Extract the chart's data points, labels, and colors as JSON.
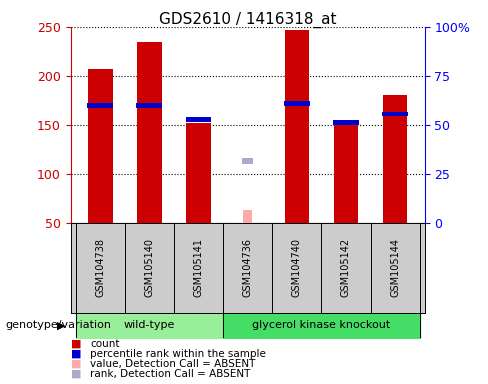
{
  "title": "GDS2610 / 1416318_at",
  "samples": [
    "GSM104738",
    "GSM105140",
    "GSM105141",
    "GSM104736",
    "GSM104740",
    "GSM105142",
    "GSM105144"
  ],
  "count_values": [
    207,
    235,
    152,
    null,
    247,
    152,
    180
  ],
  "percentile_values": [
    170,
    170,
    155,
    null,
    172,
    152,
    161
  ],
  "absent_value": [
    null,
    null,
    null,
    63,
    null,
    null,
    null
  ],
  "absent_rank": [
    null,
    null,
    null,
    113,
    null,
    null,
    null
  ],
  "ylim_left": [
    50,
    250
  ],
  "ylim_right": [
    0,
    100
  ],
  "yticks_left": [
    50,
    100,
    150,
    200,
    250
  ],
  "yticks_right": [
    0,
    25,
    50,
    75,
    100
  ],
  "ytick_labels_right": [
    "0",
    "25",
    "50",
    "75",
    "100%"
  ],
  "count_color": "#cc0000",
  "percentile_color": "#0000cc",
  "absent_value_color": "#ffaaaa",
  "absent_rank_color": "#aaaacc",
  "wt_color": "#99ee99",
  "gk_color": "#44dd66",
  "genotype_label": "genotype/variation",
  "group1_name": "wild-type",
  "group2_name": "glycerol kinase knockout",
  "wt_samples": [
    0,
    1,
    2
  ],
  "gk_samples": [
    3,
    4,
    5,
    6
  ],
  "legend_items": [
    {
      "label": "count",
      "color": "#cc0000"
    },
    {
      "label": "percentile rank within the sample",
      "color": "#0000cc"
    },
    {
      "label": "value, Detection Call = ABSENT",
      "color": "#ffaaaa"
    },
    {
      "label": "rank, Detection Call = ABSENT",
      "color": "#aaaacc"
    }
  ]
}
